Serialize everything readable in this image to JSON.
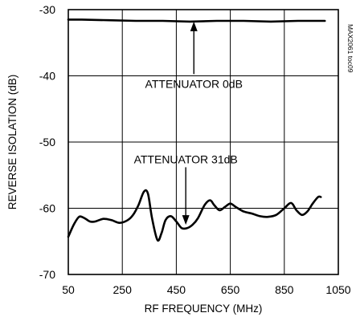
{
  "chart_data": {
    "type": "line",
    "title": "",
    "xlabel": "RF FREQUENCY (MHz)",
    "ylabel": "REVERSE ISOLATION (dB)",
    "xlim": [
      50,
      1050
    ],
    "ylim": [
      -70,
      -30
    ],
    "xticks": [
      50,
      250,
      450,
      650,
      850,
      1050
    ],
    "yticks": [
      -30,
      -40,
      -50,
      -60,
      -70
    ],
    "xtick_labels": [
      "50",
      "250",
      "450",
      "650",
      "850",
      "1050"
    ],
    "ytick_labels": [
      "-30",
      "-40",
      "-50",
      "-60",
      "-70"
    ],
    "grid": true,
    "series": [
      {
        "name": "ATTENUATOR 0dB",
        "x": [
          50,
          100,
          200,
          300,
          400,
          500,
          600,
          700,
          800,
          900,
          1000
        ],
        "y": [
          -31.5,
          -31.5,
          -31.6,
          -31.7,
          -31.7,
          -31.8,
          -31.7,
          -31.7,
          -31.8,
          -31.7,
          -31.7
        ]
      },
      {
        "name": "ATTENUATOR 31dB",
        "x": [
          50,
          70,
          90,
          110,
          130,
          150,
          180,
          210,
          240,
          270,
          290,
          310,
          330,
          345,
          360,
          380,
          395,
          410,
          430,
          450,
          470,
          490,
          510,
          530,
          555,
          575,
          590,
          610,
          630,
          650,
          670,
          700,
          730,
          760,
          790,
          820,
          850,
          875,
          895,
          915,
          935,
          955,
          975,
          985
        ],
        "y": [
          -64.3,
          -62.5,
          -61.3,
          -61.5,
          -62.0,
          -62.0,
          -61.6,
          -61.8,
          -62.2,
          -61.8,
          -61.0,
          -59.5,
          -57.5,
          -57.8,
          -61.5,
          -64.8,
          -63.8,
          -61.8,
          -61.2,
          -62.0,
          -63.0,
          -63.0,
          -62.5,
          -61.5,
          -59.5,
          -58.8,
          -59.5,
          -60.3,
          -59.8,
          -59.3,
          -59.8,
          -60.5,
          -60.8,
          -61.2,
          -61.3,
          -61.0,
          -60.0,
          -59.2,
          -60.3,
          -61.0,
          -60.5,
          -59.3,
          -58.3,
          -58.3
        ]
      }
    ],
    "annotations": [
      {
        "text": "ATTENUATOR 0dB",
        "x": 515,
        "y": -41.8,
        "arrow_to": {
          "x": 515,
          "y": -31.8
        }
      },
      {
        "text": "ATTENUATOR 31dB",
        "x": 485,
        "y": -53.2,
        "arrow_to": {
          "x": 485,
          "y": -62.5
        }
      }
    ],
    "watermark": "MAX2061 toc09"
  }
}
